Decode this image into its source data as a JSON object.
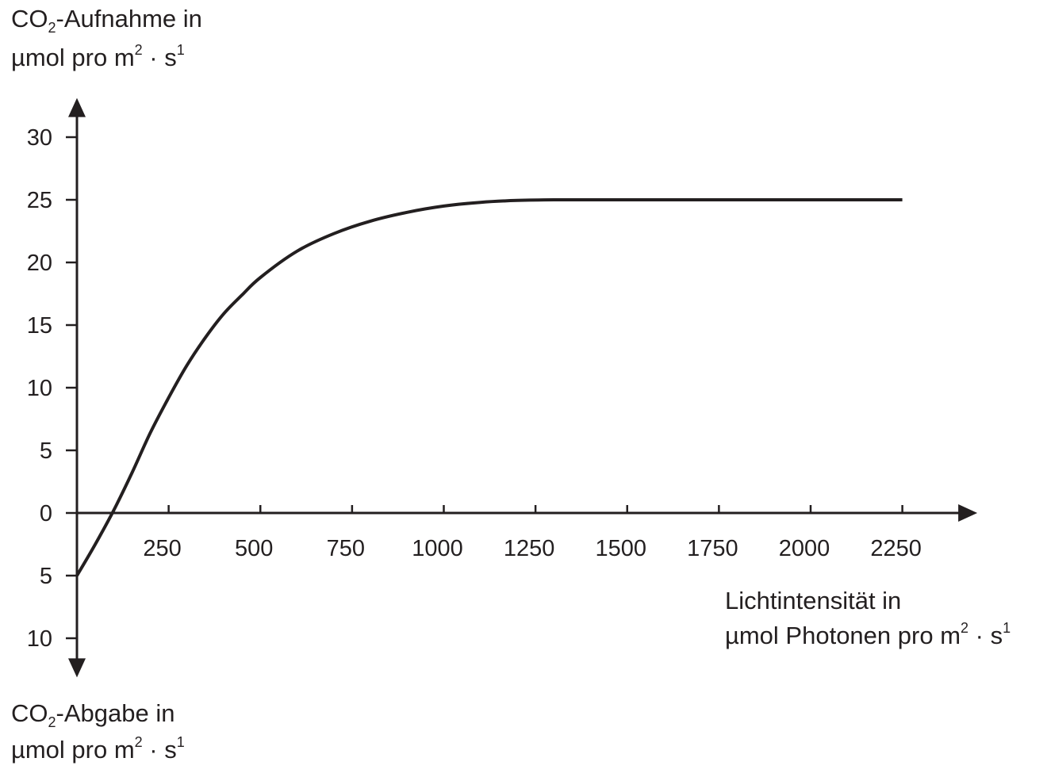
{
  "chart_data": {
    "type": "line",
    "y_label_top": {
      "line1_pre": "CO",
      "line1_sub": "2",
      "line1_post": "-Aufnahme in",
      "line2_pre": "µmol pro m",
      "line2_sup1": "2",
      "line2_mid": " · s",
      "line2_sup2": "1"
    },
    "y_label_bottom": {
      "line1_pre": "CO",
      "line1_sub": "2",
      "line1_post": "-Abgabe  in",
      "line2_pre": "µmol pro m",
      "line2_sup1": "2",
      "line2_mid": " · s",
      "line2_sup2": "1"
    },
    "x_label": {
      "line1": "Lichtintensität in",
      "line2_pre": "µmol Photonen pro m",
      "line2_sup1": "2",
      "line2_mid": " · s",
      "line2_sup2": "1"
    },
    "x_ticks": [
      250,
      500,
      750,
      1000,
      1250,
      1500,
      1750,
      2000,
      2250
    ],
    "x_tick_labels": [
      "250",
      "500",
      "750",
      "1000",
      "1250",
      "1500",
      "1750",
      "2000",
      "2250"
    ],
    "y_ticks": [
      30,
      25,
      20,
      15,
      10,
      5,
      0,
      -5,
      -10
    ],
    "y_tick_labels": [
      "30",
      "25",
      "20",
      "15",
      "10",
      "5",
      "0",
      "5",
      "10"
    ],
    "xlim": [
      0,
      2450
    ],
    "ylim": [
      -13,
      33
    ],
    "grid": false,
    "series": [
      {
        "x": [
          0,
          50,
          100,
          150,
          200,
          250,
          300,
          350,
          400,
          450,
          500,
          600,
          700,
          800,
          900,
          1000,
          1100,
          1200,
          1300,
          1400,
          1500,
          1750,
          2000,
          2250
        ],
        "y": [
          -5,
          -2.5,
          0.2,
          3.2,
          6.4,
          9.2,
          11.8,
          14.0,
          15.9,
          17.4,
          18.8,
          20.9,
          22.3,
          23.3,
          24.0,
          24.5,
          24.8,
          24.95,
          25.0,
          25.0,
          25.0,
          25.0,
          25.0,
          25.0
        ]
      }
    ]
  }
}
